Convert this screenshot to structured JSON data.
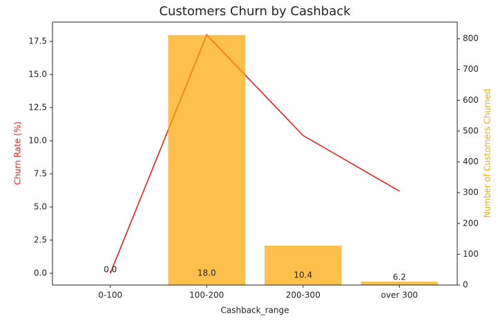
{
  "chart_data": {
    "type": "bar-line",
    "title": "Customers Churn by Cashback",
    "xlabel": "Cashback_range",
    "ylabel": "Churn Rate (%)",
    "y2label": "Number of Customers Churned",
    "categories": [
      "0-100",
      "100-200",
      "200-300",
      "over 300"
    ],
    "series": [
      {
        "type": "bar",
        "axis": "y2",
        "color": "#ffa500",
        "opacity": 0.7,
        "values": [
          0,
          812,
          128,
          11
        ]
      },
      {
        "type": "line",
        "axis": "y",
        "color": "#ee1c1c",
        "values": [
          0.0,
          18.0,
          10.4,
          6.2
        ],
        "value_labels": [
          "0.0",
          "18.0",
          "10.4",
          "6.2"
        ]
      }
    ],
    "ylim": [
      -0.89,
      18.96
    ],
    "yticks": [
      {
        "value": 0,
        "label": "0.0"
      },
      2.5,
      {
        "value": 5,
        "label": "5.0"
      },
      7.5,
      {
        "value": 10,
        "label": "10.0"
      },
      12.5,
      {
        "value": 15,
        "label": "15.0"
      },
      17.5
    ],
    "y2lim": [
      0,
      854
    ],
    "y2ticks": [
      0,
      100,
      200,
      300,
      400,
      500,
      600,
      700,
      800
    ]
  }
}
